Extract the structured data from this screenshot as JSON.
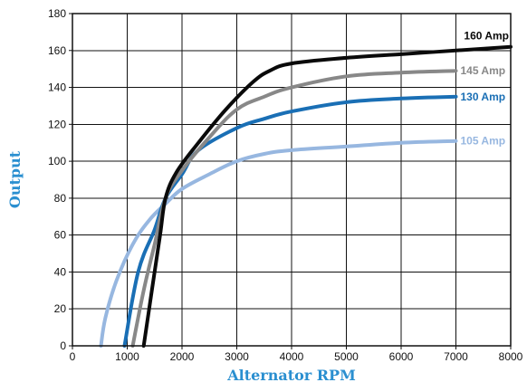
{
  "chart_data": {
    "type": "line",
    "title": "",
    "xlabel": "Alternator RPM",
    "ylabel": "Output",
    "xlim": [
      0,
      8000
    ],
    "ylim": [
      0,
      180
    ],
    "x_ticks": [
      0,
      1000,
      2000,
      3000,
      4000,
      5000,
      6000,
      7000,
      8000
    ],
    "y_ticks": [
      0,
      20,
      40,
      60,
      80,
      100,
      120,
      140,
      160,
      180
    ],
    "grid": true,
    "legend": "none",
    "colors": {
      "axis_title": "#2a8fd0",
      "grid": "#111111"
    },
    "series": [
      {
        "name": "160 Amp",
        "color": "#0a0a0a",
        "points": [
          [
            1300,
            0
          ],
          [
            1450,
            30
          ],
          [
            1600,
            60
          ],
          [
            1700,
            80
          ],
          [
            1900,
            94
          ],
          [
            2300,
            110
          ],
          [
            2800,
            128
          ],
          [
            3300,
            143
          ],
          [
            3600,
            149
          ],
          [
            4000,
            153
          ],
          [
            5000,
            156
          ],
          [
            6000,
            158
          ],
          [
            7000,
            160
          ],
          [
            8000,
            162
          ]
        ]
      },
      {
        "name": "145 Amp",
        "color": "#888888",
        "points": [
          [
            1100,
            0
          ],
          [
            1300,
            30
          ],
          [
            1500,
            55
          ],
          [
            1700,
            80
          ],
          [
            2000,
            95
          ],
          [
            2500,
            113
          ],
          [
            3000,
            128
          ],
          [
            3500,
            135
          ],
          [
            4000,
            140
          ],
          [
            5000,
            146
          ],
          [
            6000,
            148
          ],
          [
            7000,
            149
          ]
        ]
      },
      {
        "name": "130 Amp",
        "color": "#1a6fb5",
        "points": [
          [
            950,
            0
          ],
          [
            1200,
            40
          ],
          [
            1500,
            63
          ],
          [
            1700,
            80
          ],
          [
            2000,
            93
          ],
          [
            2300,
            106
          ],
          [
            3000,
            118
          ],
          [
            3500,
            123
          ],
          [
            4000,
            127
          ],
          [
            5000,
            132
          ],
          [
            6000,
            134
          ],
          [
            7000,
            135
          ]
        ]
      },
      {
        "name": "105 Amp",
        "color": "#97b7e0",
        "points": [
          [
            520,
            0
          ],
          [
            600,
            15
          ],
          [
            800,
            35
          ],
          [
            1100,
            55
          ],
          [
            1400,
            68
          ],
          [
            1700,
            77
          ],
          [
            2000,
            85
          ],
          [
            2500,
            93
          ],
          [
            3000,
            100
          ],
          [
            3500,
            104
          ],
          [
            4000,
            106
          ],
          [
            5000,
            108
          ],
          [
            6000,
            110
          ],
          [
            7000,
            111
          ]
        ]
      }
    ]
  }
}
